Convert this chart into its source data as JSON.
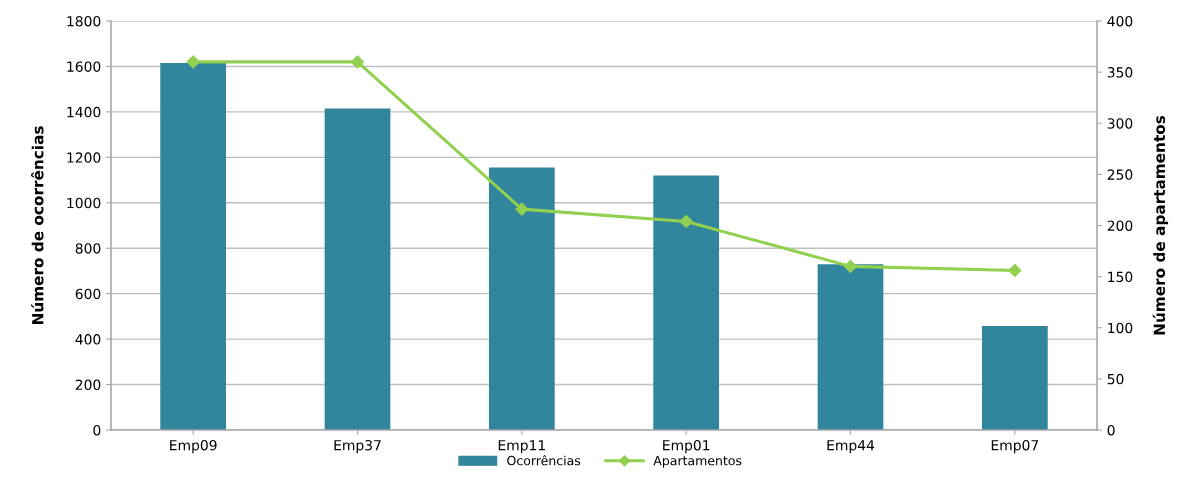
{
  "chart_data": {
    "type": "bar",
    "categories": [
      "Emp09",
      "Emp37",
      "Emp11",
      "Emp01",
      "Emp44",
      "Emp07"
    ],
    "series": [
      {
        "name": "Ocorrências",
        "color": "#31859c",
        "values": [
          1615,
          1415,
          1155,
          1120,
          730,
          458
        ]
      },
      {
        "name": "Apartamentos",
        "type": "line",
        "axis": "y2",
        "color": "#92d050",
        "marker": "diamond",
        "values": [
          360,
          360,
          216,
          204,
          160,
          156
        ]
      }
    ],
    "ylabel": "Número de ocorrências",
    "y2label": "Número de apartamentos",
    "ylim": [
      0,
      1800
    ],
    "yticks": [
      0,
      200,
      400,
      600,
      800,
      1000,
      1200,
      1400,
      1600,
      1800
    ],
    "y2lim": [
      0,
      400
    ],
    "y2ticks": [
      0,
      50,
      100,
      150,
      200,
      250,
      300,
      350,
      400
    ],
    "grid": "y",
    "legend": "bottom"
  }
}
